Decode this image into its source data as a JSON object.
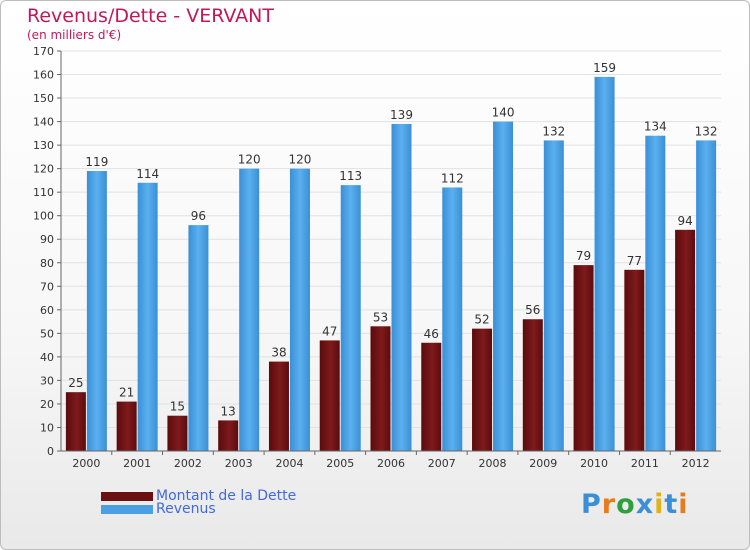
{
  "title": "Revenus/Dette - VERVANT",
  "subtitle": "(en milliers d'€)",
  "brand": "Proxiti",
  "colors": {
    "dette": "#7a1416",
    "revenus": "#4aa0e2",
    "title": "#c2185b",
    "legend_text": "#4169e1"
  },
  "legend": [
    {
      "label": "Montant de la Dette",
      "color": "#6b0f10"
    },
    {
      "label": "Revenus",
      "color": "#4aa0e2"
    }
  ],
  "chart_data": {
    "type": "bar",
    "categories": [
      "2000",
      "2001",
      "2002",
      "2003",
      "2004",
      "2005",
      "2006",
      "2007",
      "2008",
      "2009",
      "2010",
      "2011",
      "2012"
    ],
    "series": [
      {
        "name": "Montant de la Dette",
        "values": [
          25,
          21,
          15,
          13,
          38,
          47,
          53,
          46,
          52,
          56,
          79,
          77,
          94
        ]
      },
      {
        "name": "Revenus",
        "values": [
          119,
          114,
          96,
          120,
          120,
          113,
          139,
          112,
          140,
          132,
          159,
          134,
          132
        ]
      }
    ],
    "ylim": [
      0,
      170
    ],
    "yticks": [
      0,
      10,
      20,
      30,
      40,
      50,
      60,
      70,
      80,
      90,
      100,
      110,
      120,
      130,
      140,
      150,
      160,
      170
    ],
    "grid": true,
    "legend_position": "bottom-left"
  }
}
